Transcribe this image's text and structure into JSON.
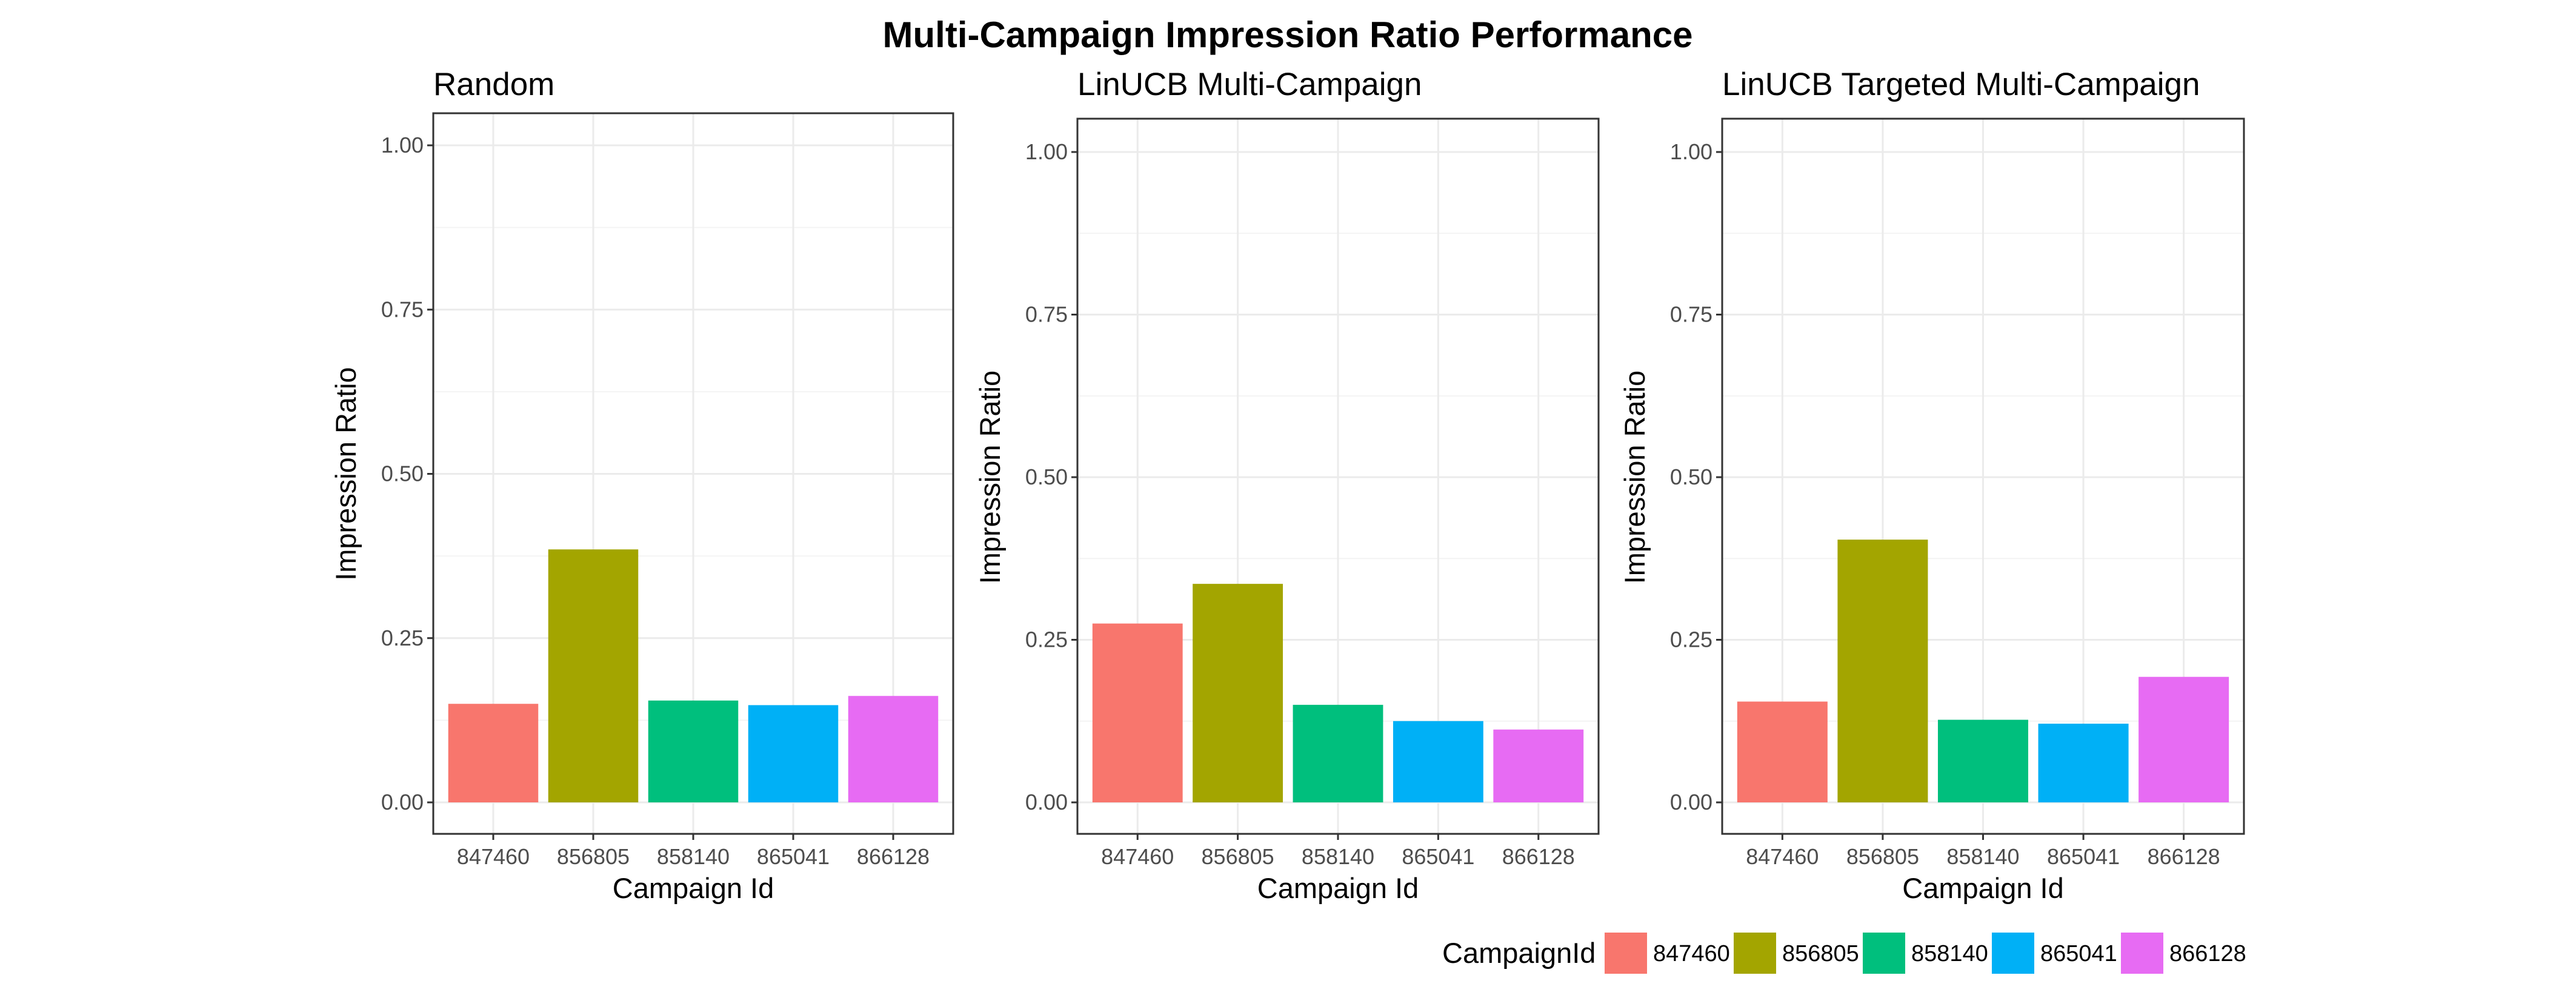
{
  "title": "Multi-Campaign Impression Ratio Performance",
  "chart_data": [
    {
      "type": "bar",
      "title": "Random",
      "xlabel": "Campaign Id",
      "ylabel": "Impression Ratio",
      "categories": [
        "847460",
        "856805",
        "858140",
        "865041",
        "866128"
      ],
      "values": [
        0.15,
        0.385,
        0.155,
        0.148,
        0.162
      ],
      "ylim": [
        0,
        1
      ],
      "yticks": [
        "0.00",
        "0.25",
        "0.50",
        "0.75",
        "1.00"
      ],
      "grid": true
    },
    {
      "type": "bar",
      "title": "LinUCB Multi-Campaign",
      "xlabel": "Campaign Id",
      "ylabel": "Impression Ratio",
      "categories": [
        "847460",
        "856805",
        "858140",
        "865041",
        "866128"
      ],
      "values": [
        0.275,
        0.336,
        0.15,
        0.125,
        0.112
      ],
      "ylim": [
        0,
        1
      ],
      "yticks": [
        "0.00",
        "0.25",
        "0.50",
        "0.75",
        "1.00"
      ],
      "grid": true
    },
    {
      "type": "bar",
      "title": "LinUCB Targeted Multi-Campaign",
      "xlabel": "Campaign Id",
      "ylabel": "Impression Ratio",
      "categories": [
        "847460",
        "856805",
        "858140",
        "865041",
        "866128"
      ],
      "values": [
        0.155,
        0.404,
        0.127,
        0.121,
        0.193
      ],
      "ylim": [
        0,
        1
      ],
      "yticks": [
        "0.00",
        "0.25",
        "0.50",
        "0.75",
        "1.00"
      ],
      "grid": true
    }
  ],
  "legend": {
    "title": "CampaignId",
    "placement": "bottom-right",
    "items": [
      {
        "label": "847460",
        "color": "#F8766D"
      },
      {
        "label": "856805",
        "color": "#A3A500"
      },
      {
        "label": "858140",
        "color": "#00BF7D"
      },
      {
        "label": "865041",
        "color": "#00B0F6"
      },
      {
        "label": "866128",
        "color": "#E76BF3"
      }
    ]
  },
  "colors": {
    "panel_border": "#333333",
    "grid_major": "#ebebeb",
    "grid_minor": "#f4f4f4"
  }
}
